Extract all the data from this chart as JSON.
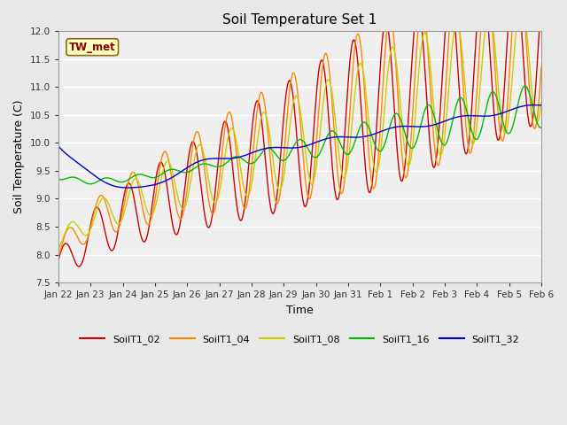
{
  "title": "Soil Temperature Set 1",
  "xlabel": "Time",
  "ylabel": "Soil Temperature (C)",
  "ylim": [
    7.5,
    12.0
  ],
  "yticks": [
    7.5,
    8.0,
    8.5,
    9.0,
    9.5,
    10.0,
    10.5,
    11.0,
    11.5,
    12.0
  ],
  "xtick_labels": [
    "Jan 22",
    "Jan 23",
    "Jan 24",
    "Jan 25",
    "Jan 26",
    "Jan 27",
    "Jan 28",
    "Jan 29",
    "Jan 30",
    "Jan 31",
    "Feb 1",
    "Feb 2",
    "Feb 3",
    "Feb 4",
    "Feb 5",
    "Feb 6"
  ],
  "annotation_text": "TW_met",
  "annotation_color": "#8B0000",
  "annotation_bg": "#FFFFC0",
  "annotation_border": "#8B6914",
  "series_colors": {
    "SoilT1_02": "#CC0000",
    "SoilT1_04": "#FF8800",
    "SoilT1_08": "#CCCC00",
    "SoilT1_16": "#00BB00",
    "SoilT1_32": "#0000CC"
  },
  "bg_color": "#E8E8E8",
  "plot_bg": "#EFEFEF",
  "grid_color": "#FFFFFF",
  "linewidth": 1.0,
  "figsize": [
    6.4,
    4.8
  ],
  "dpi": 100
}
